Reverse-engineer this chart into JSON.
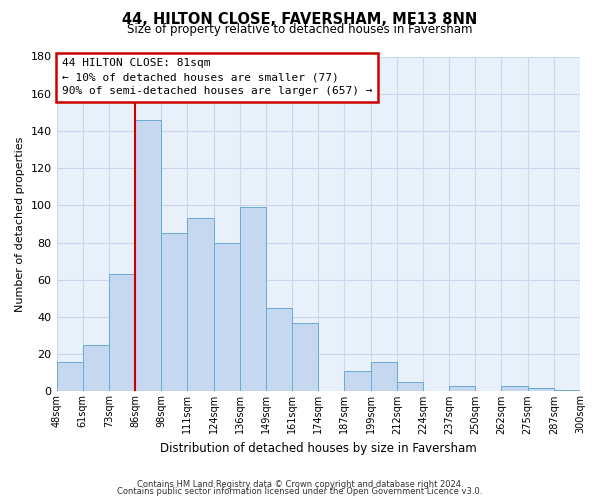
{
  "title": "44, HILTON CLOSE, FAVERSHAM, ME13 8NN",
  "subtitle": "Size of property relative to detached houses in Faversham",
  "xlabel": "Distribution of detached houses by size in Faversham",
  "ylabel": "Number of detached properties",
  "bar_labels": [
    "48sqm",
    "61sqm",
    "73sqm",
    "86sqm",
    "98sqm",
    "111sqm",
    "124sqm",
    "136sqm",
    "149sqm",
    "161sqm",
    "174sqm",
    "187sqm",
    "199sqm",
    "212sqm",
    "224sqm",
    "237sqm",
    "250sqm",
    "262sqm",
    "275sqm",
    "287sqm",
    "300sqm"
  ],
  "bar_values": [
    16,
    25,
    63,
    146,
    85,
    93,
    80,
    99,
    45,
    37,
    0,
    11,
    16,
    5,
    0,
    3,
    0,
    3,
    2,
    1
  ],
  "bar_color": "#c5d8f0",
  "bar_edge_color": "#6aaad4",
  "vline_color": "#cc0000",
  "vline_x": 3,
  "ylim": [
    0,
    180
  ],
  "yticks": [
    0,
    20,
    40,
    60,
    80,
    100,
    120,
    140,
    160,
    180
  ],
  "annotation_title": "44 HILTON CLOSE: 81sqm",
  "annotation_line1": "← 10% of detached houses are smaller (77)",
  "annotation_line2": "90% of semi-detached houses are larger (657) →",
  "annotation_box_color": "#ffffff",
  "annotation_box_edge": "#cc0000",
  "footnote1": "Contains HM Land Registry data © Crown copyright and database right 2024.",
  "footnote2": "Contains public sector information licensed under the Open Government Licence v3.0.",
  "grid_color": "#c8d8ec",
  "background_color": "#e8f0fa"
}
